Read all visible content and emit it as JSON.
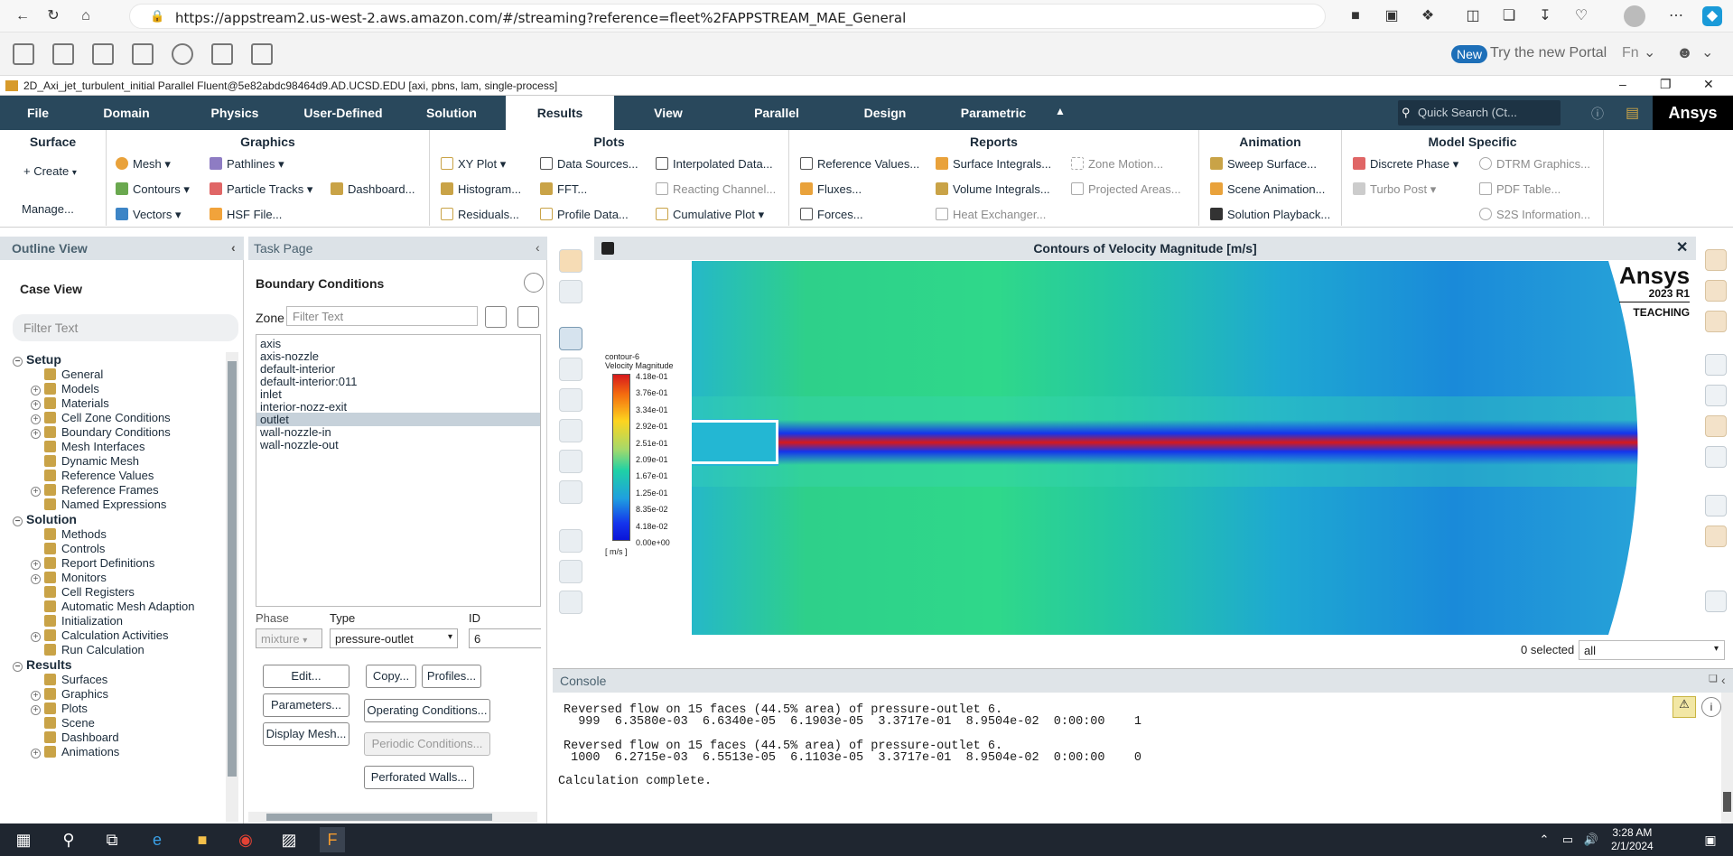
{
  "browser": {
    "url": "https://appstream2.us-west-2.aws.amazon.com/#/streaming?reference=fleet%2FAPPSTREAM_MAE_General"
  },
  "appbar": {
    "new_badge": "New",
    "portal_text": "Try the new Portal",
    "fn_label": "Fn"
  },
  "window": {
    "title": "2D_Axi_jet_turbulent_initial Parallel Fluent@5e82abdc98464d9.AD.UCSD.EDU  [axi, pbns, lam, single-process]"
  },
  "menu": {
    "tabs": [
      "File",
      "Domain",
      "Physics",
      "User-Defined",
      "Solution",
      "Results",
      "View",
      "Parallel",
      "Design",
      "Parametric"
    ],
    "active": "Results",
    "search_placeholder": "Quick Search (Ct...",
    "logo": "Ansys"
  },
  "ribbon": {
    "surface": {
      "title": "Surface",
      "create": "Create",
      "manage": "Manage..."
    },
    "graphics": {
      "title": "Graphics",
      "mesh": "Mesh",
      "contours": "Contours",
      "vectors": "Vectors",
      "pathlines": "Pathlines",
      "particle_tracks": "Particle Tracks",
      "hsf": "HSF File...",
      "dashboard": "Dashboard..."
    },
    "plots": {
      "title": "Plots",
      "xy": "XY Plot",
      "histogram": "Histogram...",
      "residuals": "Residuals...",
      "data_sources": "Data Sources...",
      "fft": "FFT...",
      "profile_data": "Profile Data...",
      "interpolated": "Interpolated Data...",
      "reacting": "Reacting Channel...",
      "cumulative": "Cumulative Plot"
    },
    "reports": {
      "title": "Reports",
      "reference": "Reference Values...",
      "fluxes": "Fluxes...",
      "forces": "Forces...",
      "surface_int": "Surface Integrals...",
      "volume_int": "Volume Integrals...",
      "heat_ex": "Heat Exchanger...",
      "zone_motion": "Zone Motion...",
      "projected": "Projected Areas..."
    },
    "animation": {
      "title": "Animation",
      "sweep": "Sweep Surface...",
      "scene": "Scene Animation...",
      "playback": "Solution Playback..."
    },
    "model_specific": {
      "title": "Model Specific",
      "discrete": "Discrete Phase",
      "turbo": "Turbo Post",
      "dtrm": "DTRM Graphics...",
      "pdf": "PDF Table...",
      "s2s": "S2S Information..."
    }
  },
  "outline": {
    "header": "Outline View",
    "case_view": "Case View",
    "filter_placeholder": "Filter Text",
    "tree": [
      {
        "label": "Setup",
        "level": 0,
        "section": true
      },
      {
        "label": "General",
        "level": 1
      },
      {
        "label": "Models",
        "level": 1,
        "exp": true
      },
      {
        "label": "Materials",
        "level": 1,
        "exp": true
      },
      {
        "label": "Cell Zone Conditions",
        "level": 1,
        "exp": true
      },
      {
        "label": "Boundary Conditions",
        "level": 1,
        "exp": true
      },
      {
        "label": "Mesh Interfaces",
        "level": 1
      },
      {
        "label": "Dynamic Mesh",
        "level": 1
      },
      {
        "label": "Reference Values",
        "level": 1
      },
      {
        "label": "Reference Frames",
        "level": 1,
        "exp": true
      },
      {
        "label": "Named Expressions",
        "level": 1
      },
      {
        "label": "Solution",
        "level": 0,
        "section": true
      },
      {
        "label": "Methods",
        "level": 1
      },
      {
        "label": "Controls",
        "level": 1
      },
      {
        "label": "Report Definitions",
        "level": 1,
        "exp": true
      },
      {
        "label": "Monitors",
        "level": 1,
        "exp": true
      },
      {
        "label": "Cell Registers",
        "level": 1
      },
      {
        "label": "Automatic Mesh Adaption",
        "level": 1
      },
      {
        "label": "Initialization",
        "level": 1
      },
      {
        "label": "Calculation Activities",
        "level": 1,
        "exp": true
      },
      {
        "label": "Run Calculation",
        "level": 1
      },
      {
        "label": "Results",
        "level": 0,
        "section": true
      },
      {
        "label": "Surfaces",
        "level": 1
      },
      {
        "label": "Graphics",
        "level": 1,
        "exp": true
      },
      {
        "label": "Plots",
        "level": 1,
        "exp": true
      },
      {
        "label": "Scene",
        "level": 1
      },
      {
        "label": "Dashboard",
        "level": 1
      },
      {
        "label": "Animations",
        "level": 1,
        "exp": true
      }
    ]
  },
  "task": {
    "header": "Task Page",
    "title": "Boundary Conditions",
    "zone_label": "Zone",
    "zone_filter_placeholder": "Filter Text",
    "zones": [
      "axis",
      "axis-nozzle",
      "default-interior",
      "default-interior:011",
      "inlet",
      "interior-nozz-exit",
      "outlet",
      "wall-nozzle-in",
      "wall-nozzle-out"
    ],
    "selected_zone": "outlet",
    "phase_label": "Phase",
    "phase_value": "mixture",
    "type_label": "Type",
    "type_value": "pressure-outlet",
    "id_label": "ID",
    "id_value": "6",
    "buttons": {
      "edit": "Edit...",
      "copy": "Copy...",
      "profiles": "Profiles...",
      "parameters": "Parameters...",
      "operating": "Operating Conditions...",
      "display_mesh": "Display Mesh...",
      "periodic": "Periodic Conditions...",
      "perforated": "Perforated Walls..."
    }
  },
  "graphics": {
    "title": "Contours of Velocity Magnitude [m/s]",
    "legend_name": "contour-6",
    "legend_title": "Velocity Magnitude",
    "legend_unit": "[ m/s ]",
    "legend_values": [
      "4.18e-01",
      "3.76e-01",
      "3.34e-01",
      "2.92e-01",
      "2.51e-01",
      "2.09e-01",
      "1.67e-01",
      "1.25e-01",
      "8.35e-02",
      "4.18e-02",
      "0.00e+00"
    ],
    "brand": {
      "name": "Ansys",
      "version": "2023 R1",
      "edition": "TEACHING"
    },
    "selected_count": "0 selected",
    "selection_filter": "all"
  },
  "console": {
    "header": "Console",
    "lines": [
      "Reversed flow on 15 faces (44.5% area) of pressure-outlet 6.",
      "  999  6.3580e-03  6.6340e-05  6.1903e-05  3.3717e-01  8.9504e-02  0:00:00    1",
      "",
      "Reversed flow on 15 faces (44.5% area) of pressure-outlet 6.",
      " 1000  6.2715e-03  6.5513e-05  6.1103e-05  3.3717e-01  8.9504e-02  0:00:00    0",
      "",
      "Calculation complete."
    ]
  },
  "taskbar": {
    "time": "3:28 AM",
    "date": "2/1/2024"
  },
  "colors": {
    "menubar": "#29485c",
    "accent": "#1d6fb8"
  }
}
